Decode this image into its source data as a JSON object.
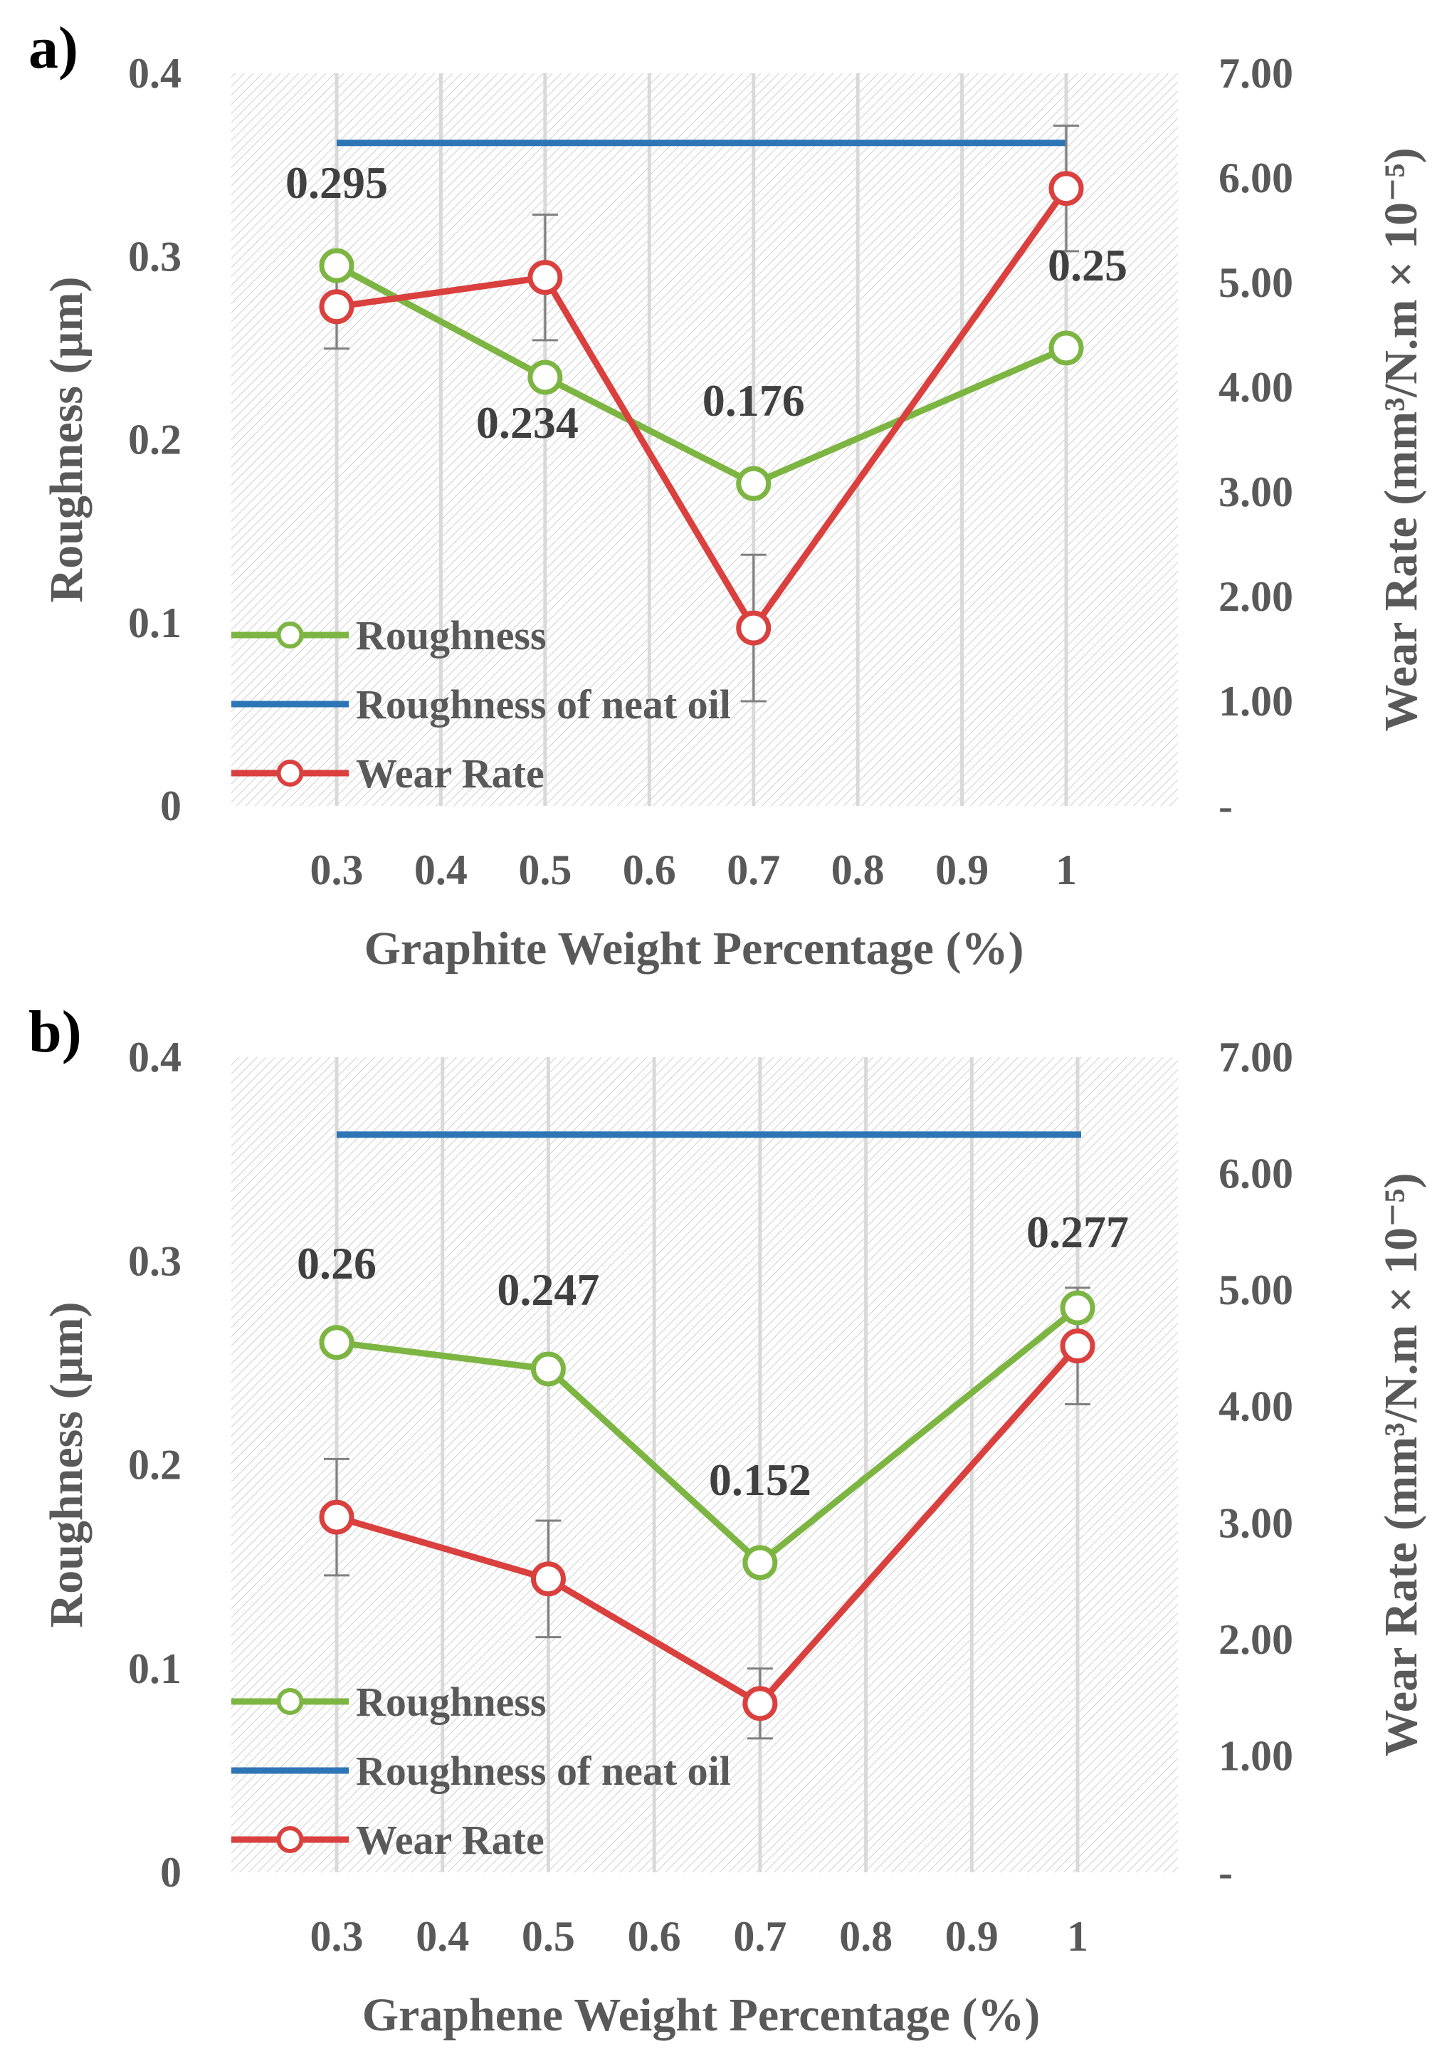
{
  "colors": {
    "roughness": "#7db543",
    "neat_oil": "#2e75b6",
    "wear": "#d9403e",
    "text": "#595959",
    "panel_label": "#000000",
    "grid": "#d9d9d9",
    "hatch": "#c8c8c8",
    "errorbar": "#808080"
  },
  "chart_data": [
    {
      "type": "line",
      "panel_label": "a)",
      "xlabel": "Graphite Weight Percentage (%)",
      "ylabel_left": "Roughness (µm)",
      "ylabel_right": "Wear Rate (mm³/N.m × 10⁻⁵)",
      "xlim": [
        0.2,
        1.1
      ],
      "x_ticks": [
        "0.3",
        "0.4",
        "0.5",
        "0.6",
        "0.7",
        "0.8",
        "0.9",
        "1"
      ],
      "x_tick_values": [
        0.3,
        0.4,
        0.5,
        0.6,
        0.7,
        0.8,
        0.9,
        1.0
      ],
      "ylim_left": [
        0,
        0.4
      ],
      "y_ticks_left": [
        "0",
        "0.1",
        "0.2",
        "0.3",
        "0.4"
      ],
      "ylim_right": [
        0,
        7
      ],
      "y_ticks_right": [
        "-",
        "1.00",
        "2.00",
        "3.00",
        "4.00",
        "5.00",
        "6.00",
        "7.00"
      ],
      "legend": {
        "position": "bottom-left",
        "entries": [
          "Roughness",
          "Roughness of neat oil",
          "Wear Rate"
        ]
      },
      "series": [
        {
          "name": "Roughness",
          "axis": "left",
          "x": [
            0.3,
            0.5,
            0.7,
            1.0
          ],
          "values": [
            0.295,
            0.234,
            0.176,
            0.25
          ],
          "labels": [
            "0.295",
            "0.234",
            "0.176",
            "0.25"
          ]
        },
        {
          "name": "Roughness of neat oil",
          "axis": "left",
          "x": [
            0.3,
            1.0
          ],
          "values": [
            0.362,
            0.362
          ]
        },
        {
          "name": "Wear Rate",
          "axis": "right",
          "x": [
            0.3,
            0.5,
            0.7,
            1.0
          ],
          "values": [
            4.77,
            5.05,
            1.7,
            5.9
          ],
          "error": [
            0.4,
            0.6,
            0.7,
            0.6
          ]
        }
      ]
    },
    {
      "type": "line",
      "panel_label": "b)",
      "xlabel": "Graphene Weight Percentage (%)",
      "ylabel_left": "Roughness (µm)",
      "ylabel_right": "Wear Rate (mm³/N.m × 10⁻⁵)",
      "xlim": [
        0.2,
        1.1
      ],
      "x_ticks": [
        "0.3",
        "0.4",
        "0.5",
        "0.6",
        "0.7",
        "0.8",
        "0.9",
        "1"
      ],
      "x_tick_values": [
        0.3,
        0.4,
        0.5,
        0.6,
        0.7,
        0.8,
        0.9,
        1.0
      ],
      "ylim_left": [
        0,
        0.4
      ],
      "y_ticks_left": [
        "0",
        "0.1",
        "0.2",
        "0.3",
        "0.4"
      ],
      "ylim_right": [
        0,
        7
      ],
      "y_ticks_right": [
        "-",
        "1.00",
        "2.00",
        "3.00",
        "4.00",
        "5.00",
        "6.00",
        "7.00"
      ],
      "legend": {
        "position": "bottom-left",
        "entries": [
          "Roughness",
          "Roughness of neat oil",
          "Wear Rate"
        ]
      },
      "series": [
        {
          "name": "Roughness",
          "axis": "left",
          "x": [
            0.3,
            0.5,
            0.7,
            1.0
          ],
          "values": [
            0.26,
            0.247,
            0.152,
            0.277
          ],
          "labels": [
            "0.26",
            "0.247",
            "0.152",
            "0.277"
          ]
        },
        {
          "name": "Roughness of neat oil",
          "axis": "left",
          "x": [
            0.3,
            1.0
          ],
          "values": [
            0.362,
            0.362
          ]
        },
        {
          "name": "Wear Rate",
          "axis": "right",
          "x": [
            0.3,
            0.5,
            0.7,
            1.0
          ],
          "values": [
            3.05,
            2.52,
            1.45,
            4.52
          ],
          "error": [
            0.5,
            0.5,
            0.3,
            0.5
          ]
        }
      ]
    }
  ]
}
